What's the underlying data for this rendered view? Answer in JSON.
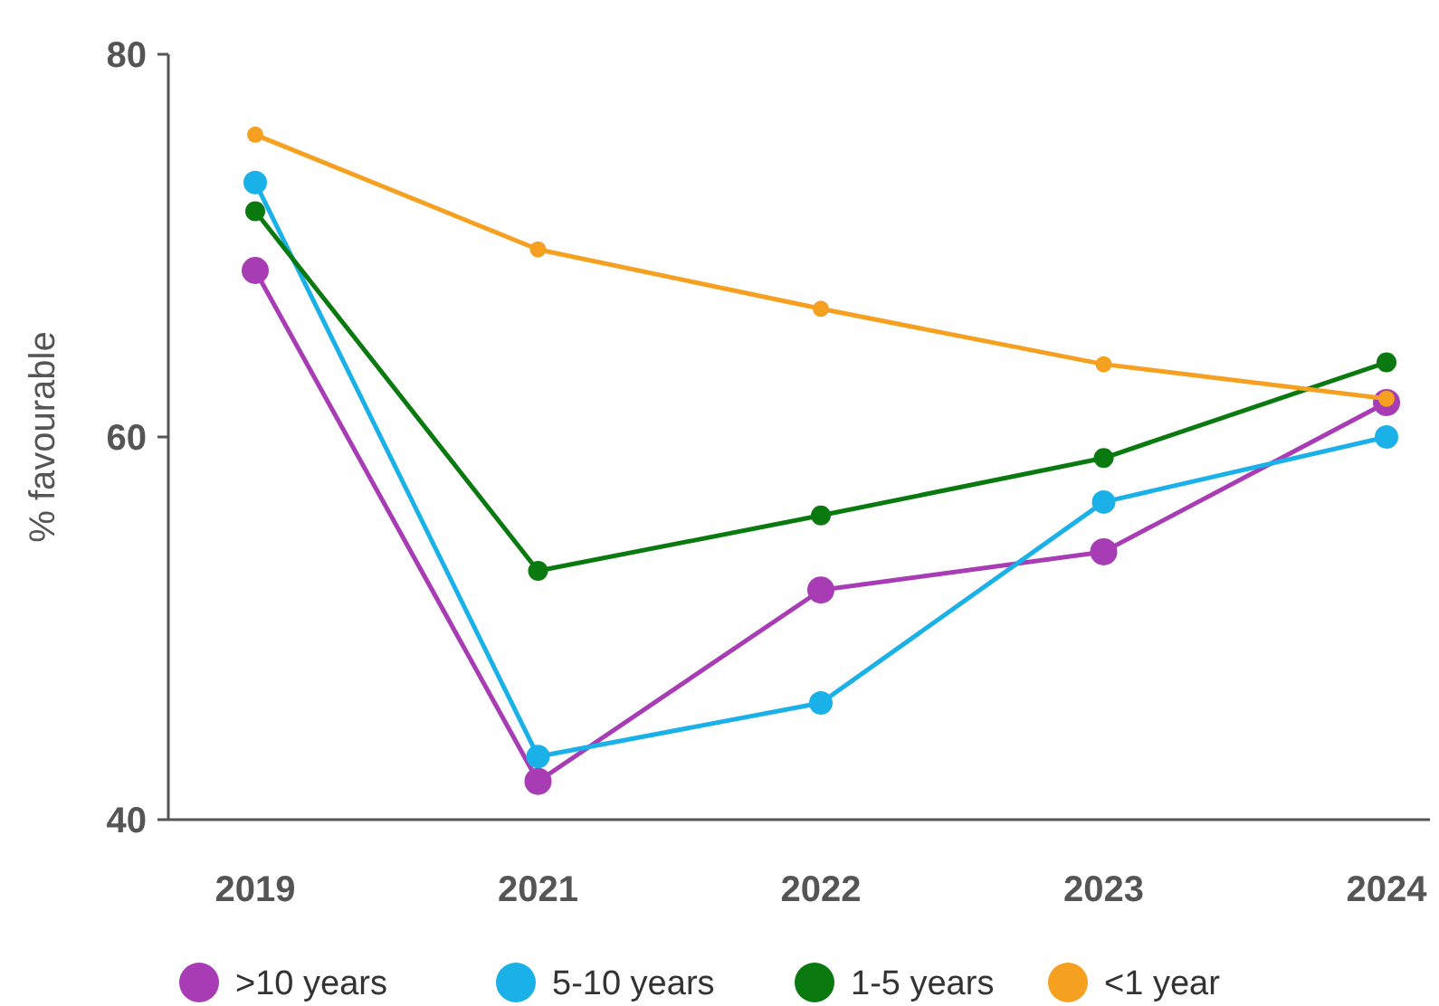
{
  "chart_data": {
    "type": "line",
    "ylabel": "% favourable",
    "categories": [
      "2019",
      "2021",
      "2022",
      "2023",
      "2024"
    ],
    "ylim": [
      40,
      80
    ],
    "yticks": [
      40,
      60,
      80
    ],
    "grid": false,
    "legend": "bottom",
    "marker": "circle",
    "line_style": "solid",
    "series": [
      {
        "name": ">10 years",
        "color": "#a83cb4",
        "values": [
          68.7,
          42.0,
          52.0,
          54.0,
          61.8
        ]
      },
      {
        "name": "5-10 years",
        "color": "#1ab0e8",
        "values": [
          73.3,
          43.3,
          46.1,
          56.6,
          60.0
        ]
      },
      {
        "name": "1-5 years",
        "color": "#0a7a10",
        "values": [
          71.8,
          53.0,
          55.9,
          58.9,
          63.9
        ]
      },
      {
        "name": "<1 year",
        "color": "#f5a020",
        "values": [
          75.8,
          69.8,
          66.7,
          63.8,
          62.0
        ]
      }
    ]
  }
}
